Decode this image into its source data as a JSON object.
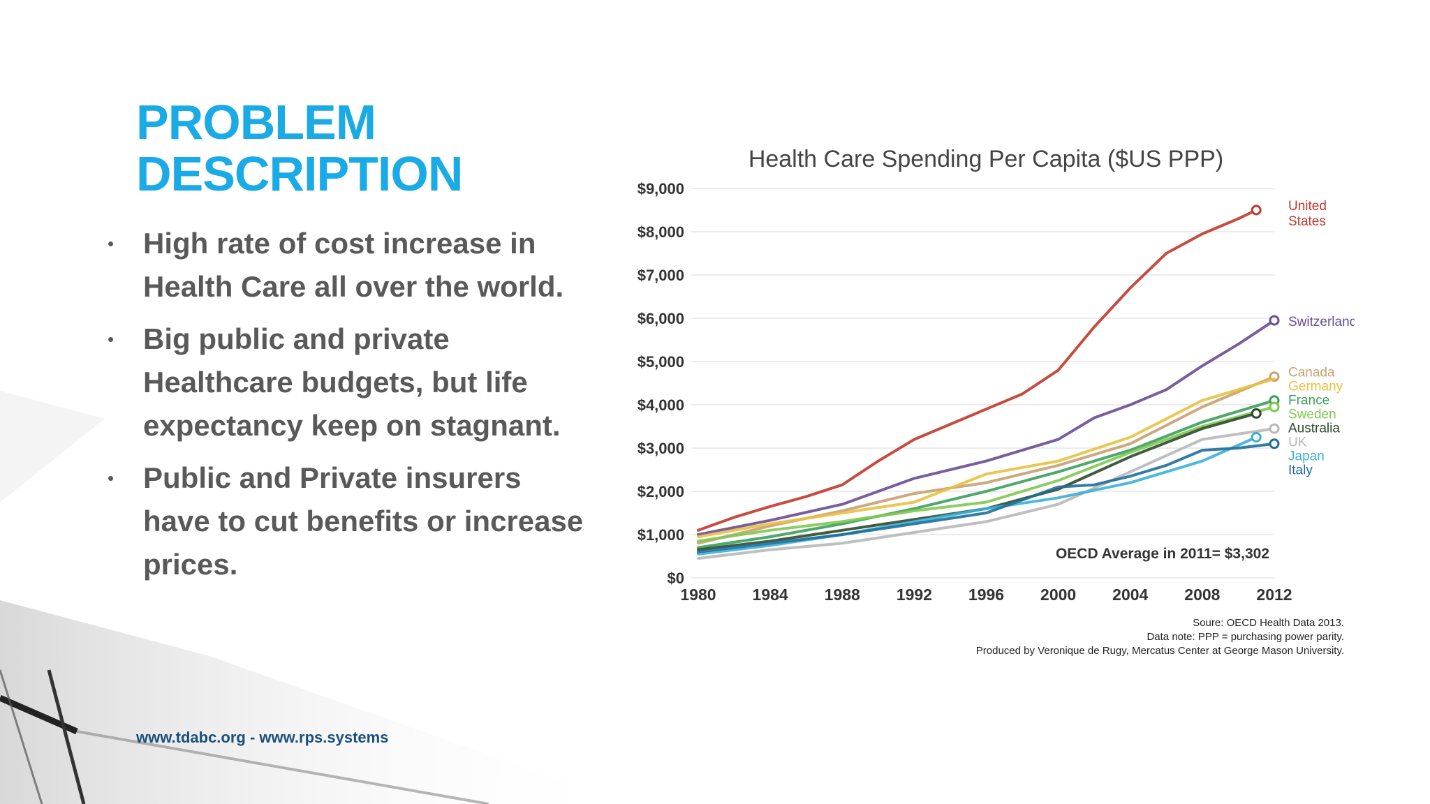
{
  "slide": {
    "title_line1": "PROBLEM",
    "title_line2": "DESCRIPTION",
    "bullets": [
      "High rate of cost increase in Health Care all over the world.",
      "Big public and private Healthcare budgets, but life expectancy keep on stagnant.",
      "Public and Private insurers have to cut benefits or increase prices."
    ],
    "bullet_symbol": "•",
    "footer": "www.tdabc.org - www.rps.systems",
    "title_color": "#1aaae6"
  },
  "chart_data": {
    "type": "line",
    "title": "Health Care Spending Per Capita ($US PPP)",
    "xlabel": "",
    "ylabel": "",
    "xlim": [
      1980,
      2012
    ],
    "ylim": [
      0,
      9000
    ],
    "x_ticks": [
      "1980",
      "1984",
      "1988",
      "1992",
      "1996",
      "2000",
      "2004",
      "2008",
      "2012"
    ],
    "y_ticks": [
      "$0",
      "$1,000",
      "$2,000",
      "$3,000",
      "$4,000",
      "$5,000",
      "$6,000",
      "$7,000",
      "$8,000",
      "$9,000"
    ],
    "grid": true,
    "annotation": "OECD Average in 2011= $3,302",
    "source_lines": [
      "Soure: OECD Health Data 2013.",
      "Data note: PPP = purchasing power parity.",
      "Produced by Veronique de Rugy, Mercatus Center at George Mason University."
    ],
    "series": [
      {
        "name": "United States",
        "label_lines": [
          "United",
          "States"
        ],
        "color": "#c0392b",
        "end_marker": true,
        "x": [
          1980,
          1982,
          1984,
          1986,
          1988,
          1990,
          1992,
          1994,
          1996,
          1998,
          2000,
          2002,
          2004,
          2006,
          2008,
          2010,
          2011
        ],
        "y": [
          1100,
          1400,
          1650,
          1880,
          2150,
          2700,
          3200,
          3550,
          3900,
          4250,
          4800,
          5800,
          6700,
          7500,
          7950,
          8300,
          8500
        ]
      },
      {
        "name": "Switzerland",
        "label_lines": [
          "Switzerland"
        ],
        "color": "#6a4c93",
        "end_marker": true,
        "x": [
          1980,
          1984,
          1988,
          1992,
          1996,
          2000,
          2002,
          2004,
          2006,
          2008,
          2010,
          2012
        ],
        "y": [
          1000,
          1330,
          1700,
          2300,
          2700,
          3200,
          3700,
          4000,
          4350,
          4900,
          5400,
          5950
        ]
      },
      {
        "name": "Canada",
        "label_lines": [
          "Canada"
        ],
        "color": "#c8a070",
        "end_marker": true,
        "x": [
          1980,
          1984,
          1988,
          1992,
          1996,
          2000,
          2004,
          2008,
          2012
        ],
        "y": [
          800,
          1200,
          1550,
          1950,
          2200,
          2600,
          3100,
          3950,
          4650
        ]
      },
      {
        "name": "Germany",
        "label_lines": [
          "Germany"
        ],
        "color": "#e8c040",
        "end_marker": false,
        "x": [
          1980,
          1984,
          1988,
          1992,
          1996,
          2000,
          2004,
          2008,
          2012
        ],
        "y": [
          950,
          1250,
          1500,
          1750,
          2400,
          2700,
          3250,
          4100,
          4600
        ]
      },
      {
        "name": "France",
        "label_lines": [
          "France"
        ],
        "color": "#3aa05a",
        "end_marker": true,
        "x": [
          1980,
          1984,
          1988,
          1992,
          1996,
          2000,
          2004,
          2008,
          2012
        ],
        "y": [
          700,
          950,
          1250,
          1600,
          2000,
          2450,
          2950,
          3600,
          4100
        ]
      },
      {
        "name": "Sweden",
        "label_lines": [
          "Sweden"
        ],
        "color": "#7ec850",
        "end_marker": true,
        "x": [
          1980,
          1984,
          1988,
          1992,
          1996,
          2000,
          2004,
          2008,
          2012
        ],
        "y": [
          850,
          1100,
          1300,
          1550,
          1750,
          2250,
          2900,
          3500,
          3950
        ]
      },
      {
        "name": "Australia",
        "label_lines": [
          "Australia"
        ],
        "color": "#2c4a2c",
        "end_marker": true,
        "x": [
          1980,
          1984,
          1988,
          1992,
          1996,
          2000,
          2004,
          2008,
          2011
        ],
        "y": [
          650,
          850,
          1100,
          1350,
          1600,
          2050,
          2800,
          3450,
          3800
        ]
      },
      {
        "name": "UK",
        "label_lines": [
          "UK"
        ],
        "color": "#b8b8b8",
        "end_marker": true,
        "x": [
          1980,
          1984,
          1988,
          1992,
          1996,
          2000,
          2004,
          2008,
          2012
        ],
        "y": [
          450,
          650,
          800,
          1050,
          1300,
          1700,
          2450,
          3200,
          3450
        ]
      },
      {
        "name": "Japan",
        "label_lines": [
          "Japan"
        ],
        "color": "#3ab0d8",
        "end_marker": true,
        "x": [
          1980,
          1984,
          1988,
          1992,
          1996,
          2000,
          2004,
          2008,
          2011
        ],
        "y": [
          550,
          750,
          1000,
          1300,
          1600,
          1850,
          2200,
          2700,
          3250
        ]
      },
      {
        "name": "Italy",
        "label_lines": [
          "Italy"
        ],
        "color": "#1f6e9a",
        "end_marker": true,
        "x": [
          1980,
          1984,
          1988,
          1992,
          1996,
          2000,
          2002,
          2004,
          2006,
          2008,
          2010,
          2012
        ],
        "y": [
          600,
          800,
          1000,
          1250,
          1500,
          2100,
          2150,
          2350,
          2600,
          2950,
          3000,
          3100
        ]
      }
    ]
  }
}
